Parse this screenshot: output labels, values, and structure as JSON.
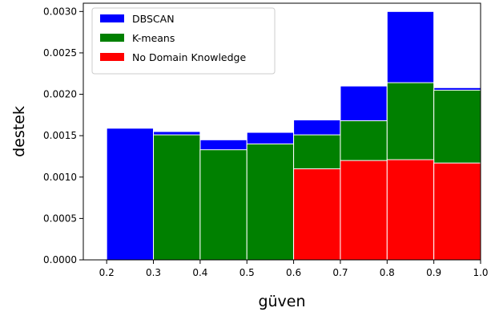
{
  "chart_data": {
    "type": "bar",
    "stacked": false,
    "overlaid": true,
    "title": "",
    "xlabel": "güven",
    "ylabel": "destek",
    "bins": [
      [
        0.2,
        0.3
      ],
      [
        0.3,
        0.4
      ],
      [
        0.4,
        0.5
      ],
      [
        0.5,
        0.6
      ],
      [
        0.6,
        0.7
      ],
      [
        0.7,
        0.8
      ],
      [
        0.8,
        0.9
      ],
      [
        0.9,
        1.0
      ]
    ],
    "series": [
      {
        "name": "DBSCAN",
        "color": "#0000ff",
        "values": [
          0.00159,
          0.00155,
          0.00145,
          0.00154,
          0.00169,
          0.0021,
          0.003,
          0.00208
        ]
      },
      {
        "name": "K-means",
        "color": "#008000",
        "values": [
          0,
          0.00151,
          0.00133,
          0.0014,
          0.00151,
          0.00168,
          0.00214,
          0.00205
        ]
      },
      {
        "name": "No Domain Knowledge",
        "color": "#ff0000",
        "values": [
          0,
          0,
          0,
          0,
          0.0011,
          0.0012,
          0.00121,
          0.00117
        ]
      }
    ],
    "xlim": [
      0.15,
      1.0
    ],
    "ylim": [
      0,
      0.0031
    ],
    "xticks": [
      "0.2",
      "0.3",
      "0.4",
      "0.5",
      "0.6",
      "0.7",
      "0.8",
      "0.9",
      "1.0"
    ],
    "yticks": [
      "0.0000",
      "0.0005",
      "0.0010",
      "0.0015",
      "0.0020",
      "0.0025",
      "0.0030"
    ],
    "grid": false,
    "legend_position": "top-left"
  }
}
